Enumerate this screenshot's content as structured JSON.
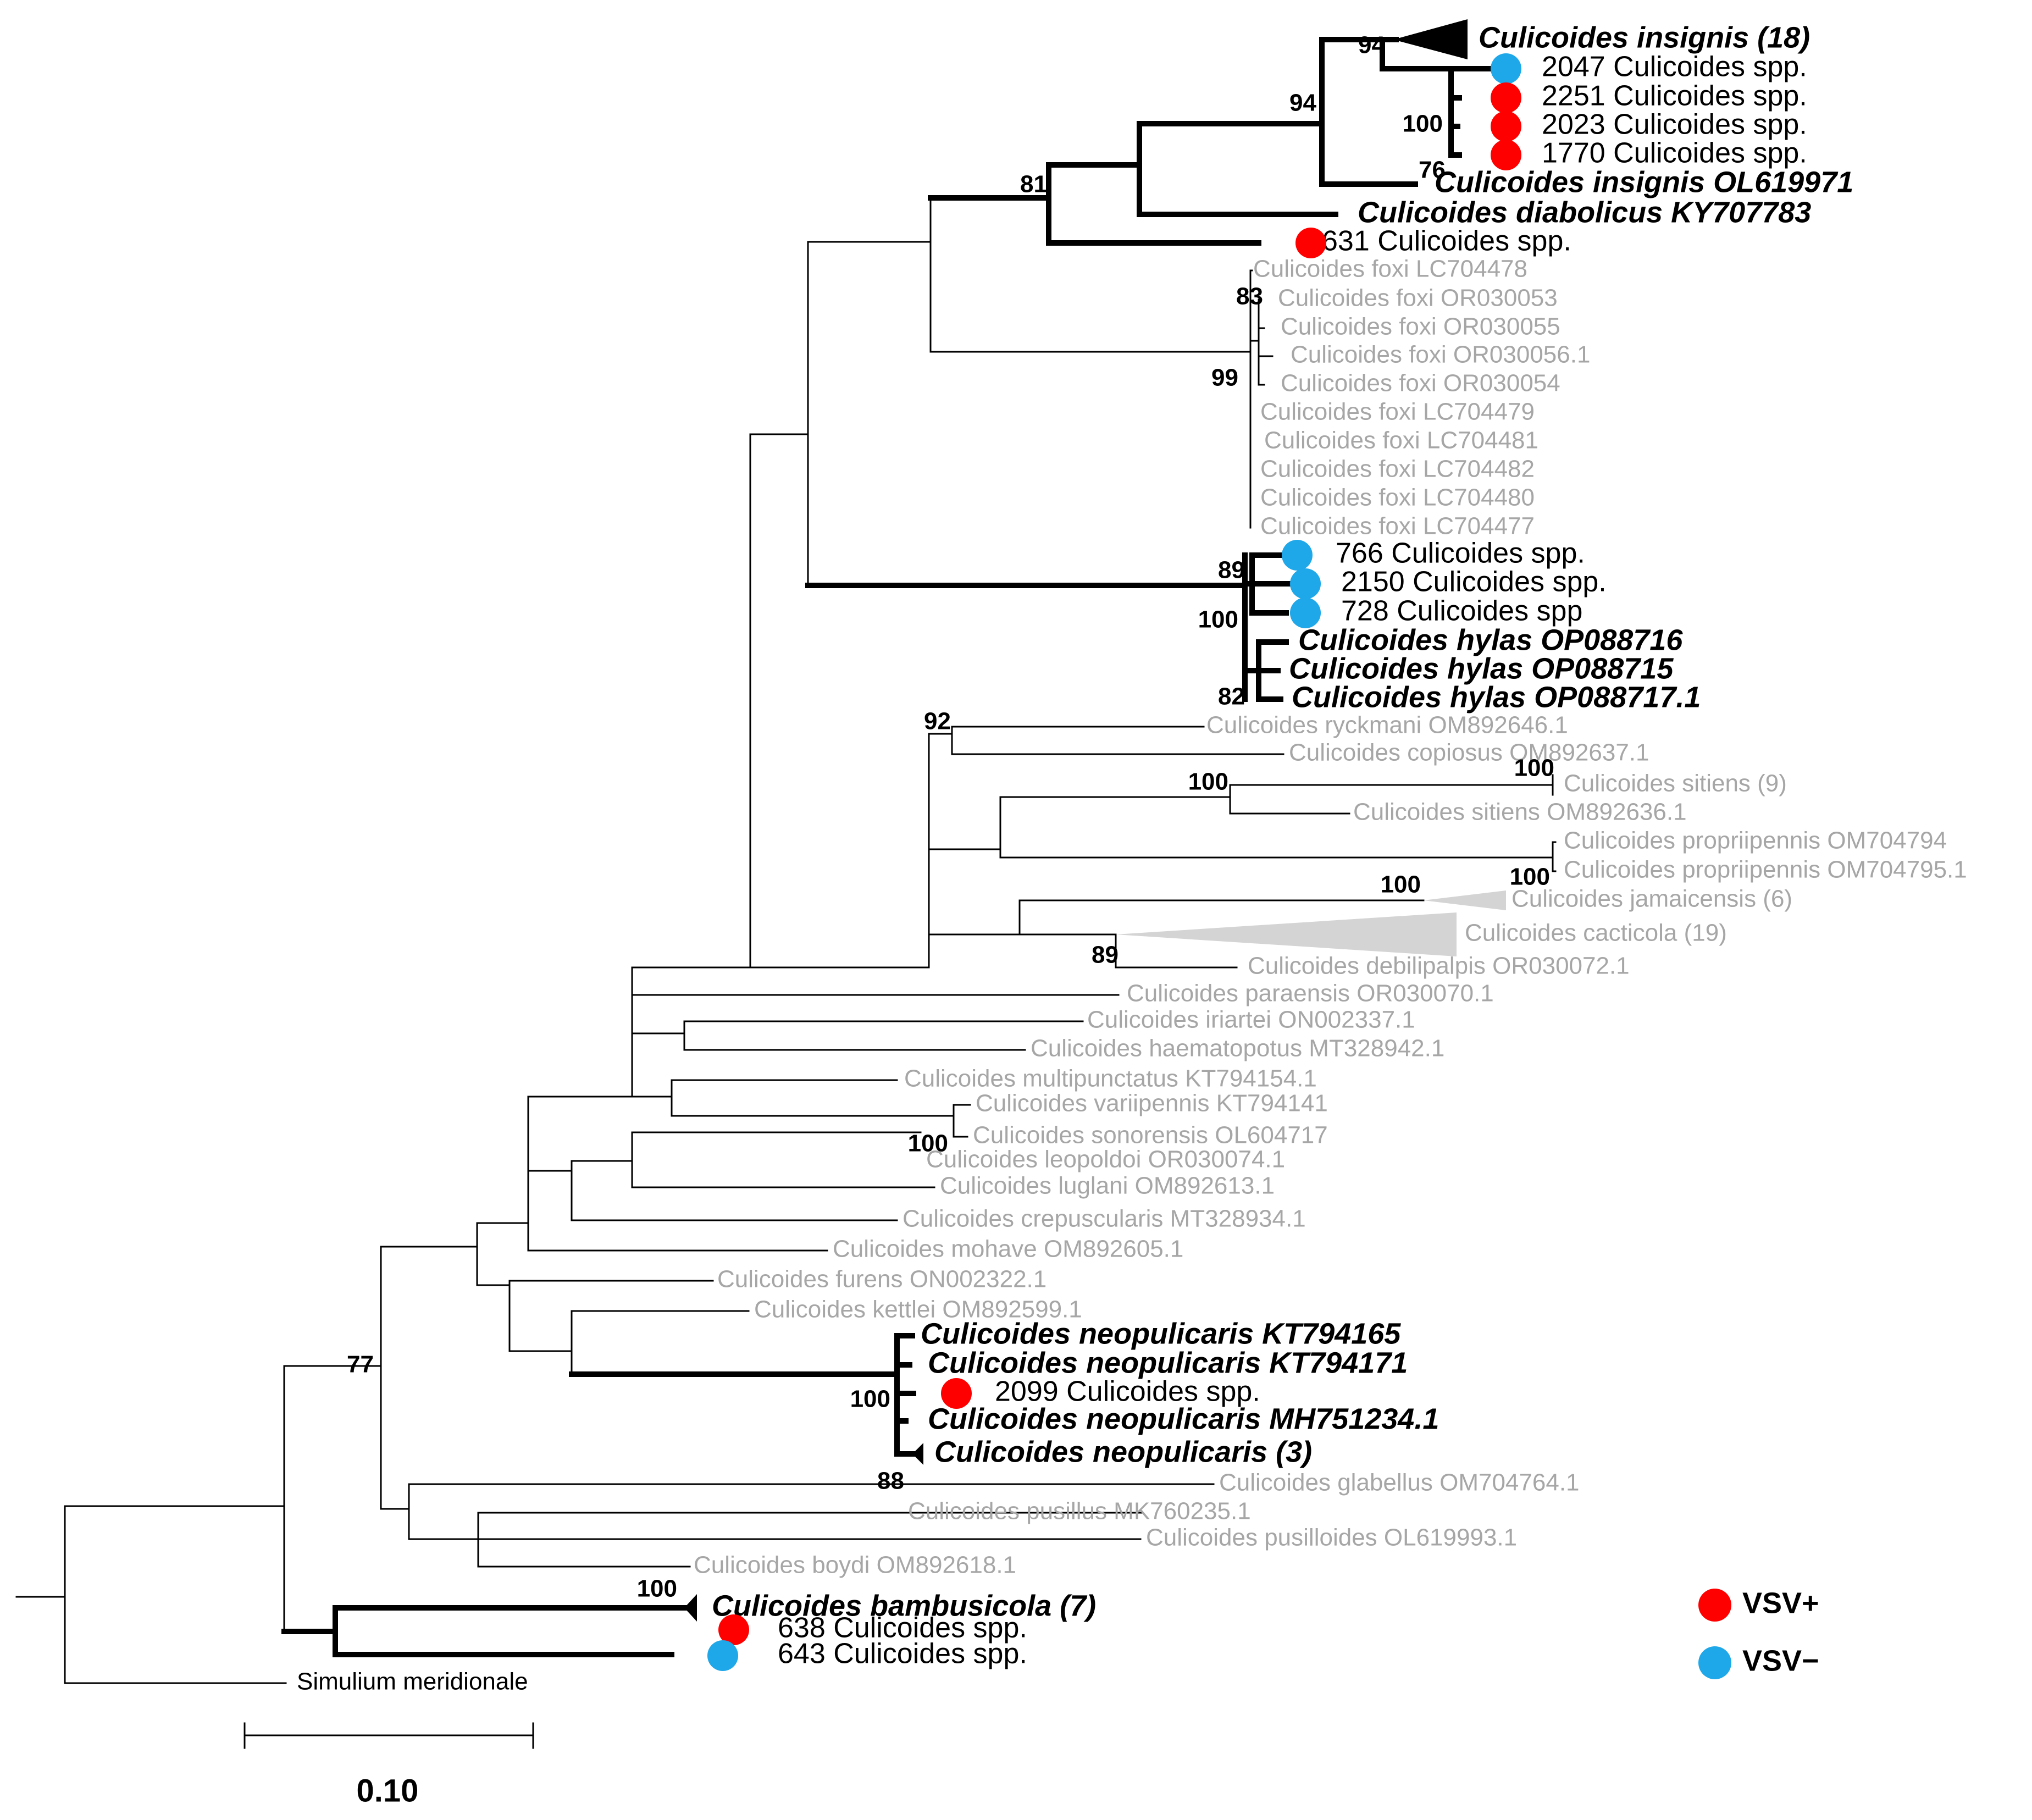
{
  "colors": {
    "vsv_positive": "#ff0000",
    "vsv_negative": "#1ea7e9",
    "reference_taxon": "#a6a6a6",
    "study_taxon": "#000000",
    "collapsed_grey": "#d4d4d4"
  },
  "taxa": {
    "insignis_clade": "Culicoides insignis (18)",
    "s2047": "2047 Culicoides spp.",
    "s2251": "2251 Culicoides spp.",
    "s2023": "2023 Culicoides spp.",
    "s1770": "1770 Culicoides spp.",
    "insignis_ol": "Culicoides insignis OL619971",
    "diabolicus": "Culicoides diabolicus KY707783",
    "s631": "631 Culicoides spp.",
    "foxi_478": "Culicoides foxi LC704478",
    "foxi_053": "Culicoides foxi OR030053",
    "foxi_055": "Culicoides foxi OR030055",
    "foxi_056": "Culicoides foxi OR030056.1",
    "foxi_054": "Culicoides foxi OR030054",
    "foxi_479": "Culicoides foxi LC704479",
    "foxi_481": "Culicoides foxi LC704481",
    "foxi_482": "Culicoides foxi LC704482",
    "foxi_480": "Culicoides foxi LC704480",
    "foxi_477": "Culicoides foxi LC704477",
    "s766": "766 Culicoides spp.",
    "s2150": "2150 Culicoides spp.",
    "s728": "728 Culicoides spp",
    "hylas_716": "Culicoides hylas OP088716",
    "hylas_715": "Culicoides hylas OP088715",
    "hylas_717": "Culicoides hylas OP088717.1",
    "ryckmani": "Culicoides ryckmani OM892646.1",
    "copiosus": "Culicoides copiosus OM892637.1",
    "sitiens_clade": "Culicoides sitiens (9)",
    "sitiens_636": "Culicoides sitiens OM892636.1",
    "propr_794": "Culicoides propriipennis OM704794",
    "propr_795": "Culicoides propriipennis OM704795.1",
    "jamaicensis": "Culicoides jamaicensis (6)",
    "cacticola": "Culicoides cacticola (19)",
    "debilipalpis": "Culicoides debilipalpis OR030072.1",
    "paraensis": "Culicoides paraensis OR030070.1",
    "iriartei": "Culicoides iriartei ON002337.1",
    "haematopotus": "Culicoides haematopotus MT328942.1",
    "multipunctatus": "Culicoides multipunctatus KT794154.1",
    "variipennis": "Culicoides variipennis KT794141",
    "sonorensis": "Culicoides sonorensis OL604717",
    "leopoldoi": "Culicoides leopoldoi OR030074.1",
    "luglani": "Culicoides luglani OM892613.1",
    "crepuscularis": "Culicoides crepuscularis MT328934.1",
    "mohave": "Culicoides mohave OM892605.1",
    "furens": "Culicoides furens ON002322.1",
    "kettlei": "Culicoides kettlei OM892599.1",
    "neo_165": "Culicoides neopulicaris KT794165",
    "neo_171": "Culicoides neopulicaris KT794171",
    "s2099": "2099 Culicoides spp.",
    "neo_mh": "Culicoides neopulicaris MH751234.1",
    "neo_clade": "Culicoides neopulicaris (3)",
    "glabellus": "Culicoides glabellus OM704764.1",
    "pusillus": "Culicoides pusillus MK760235.1",
    "pusilloides": "Culicoides pusilloides OL619993.1",
    "boydi": "Culicoides boydi OM892618.1",
    "bambusicola": "Culicoides bambusicola (7)",
    "s638": "638 Culicoides spp.",
    "s643": "643 Culicoides spp.",
    "simulium": "Simulium meridionale"
  },
  "bootstrap": {
    "insignis_top": "94",
    "insignis_mid": "94",
    "spp_100": "100",
    "insignis_76": "76",
    "root_81": "81",
    "foxi_83": "83",
    "foxi_99": "99",
    "hylas_89": "89",
    "hylas_100": "100",
    "hylas_82": "82",
    "ryckmani_92": "92",
    "sitiens_100a": "100",
    "sitiens_100b": "100",
    "propr_100": "100",
    "jamaicensis_100": "100",
    "cacticola_89": "89",
    "sonorensis_100": "100",
    "node_77": "77",
    "neo_100": "100",
    "glabellus_88": "88",
    "bambusicola_100": "100"
  },
  "legend": {
    "positive": "VSV+",
    "negative": "VSV−"
  },
  "scale": {
    "label": "0.10"
  }
}
